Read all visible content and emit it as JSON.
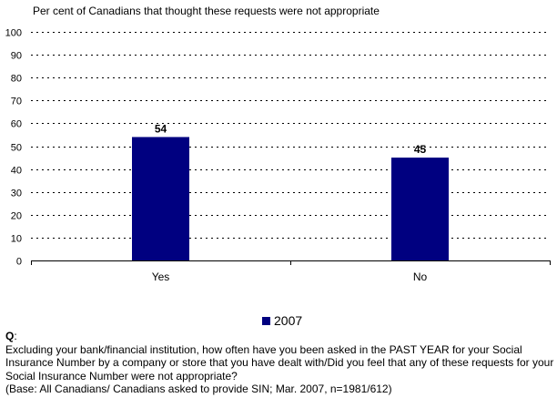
{
  "chart_data": {
    "type": "bar",
    "title": "Per cent of Canadians that thought these requests were not appropriate",
    "xlabel": "",
    "ylabel": "",
    "categories": [
      "Yes",
      "No"
    ],
    "series": [
      {
        "name": "2007",
        "values": [
          54,
          45
        ],
        "color": "#000080"
      }
    ],
    "data_labels": [
      "54",
      "45"
    ],
    "ylim": [
      0,
      100
    ],
    "yticks": [
      0,
      10,
      20,
      30,
      40,
      50,
      60,
      70,
      80,
      90,
      100
    ],
    "grid": true,
    "grid_style": "dotted",
    "legend_position": "bottom-center"
  },
  "legend": {
    "label": "2007"
  },
  "notes": {
    "q_label": "Q",
    "q_suffix": ":",
    "question": "Excluding your bank/financial institution, how often have you been asked in the PAST YEAR for your Social Insurance Number by a company or store that you have dealt with/Did you feel that any of these requests for your Social Insurance Number were not appropriate?",
    "base": "(Base: All Canadians/ Canadians asked to provide SIN; Mar. 2007, n=1981/612)"
  }
}
